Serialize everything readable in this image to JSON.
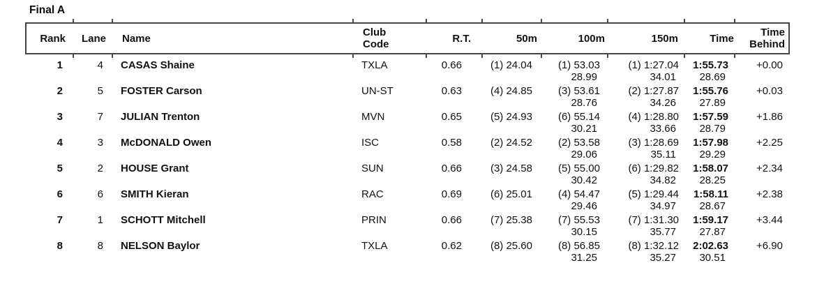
{
  "page": {
    "title": "Final A"
  },
  "table": {
    "headers": {
      "rank": "Rank",
      "lane": "Lane",
      "name": "Name",
      "club_code_line1": "Club",
      "club_code_line2": "Code",
      "rt": "R.T.",
      "m50": "50m",
      "m100": "100m",
      "m150": "150m",
      "time": "Time",
      "time_behind_line1": "Time",
      "time_behind_line2": "Behind"
    },
    "rows": [
      {
        "rank": "1",
        "lane": "4",
        "name": "CASAS Shaine",
        "club": "TXLA",
        "rt": "0.66",
        "m50": "(1) 24.04",
        "m100": "(1) 53.03",
        "m100_split": "28.99",
        "m150": "(1) 1:27.04",
        "m150_split": "34.01",
        "time": "1:55.73",
        "time_split": "28.69",
        "behind": "+0.00"
      },
      {
        "rank": "2",
        "lane": "5",
        "name": "FOSTER Carson",
        "club": "UN-ST",
        "rt": "0.63",
        "m50": "(4) 24.85",
        "m100": "(3) 53.61",
        "m100_split": "28.76",
        "m150": "(2) 1:27.87",
        "m150_split": "34.26",
        "time": "1:55.76",
        "time_split": "27.89",
        "behind": "+0.03"
      },
      {
        "rank": "3",
        "lane": "7",
        "name": "JULIAN Trenton",
        "club": "MVN",
        "rt": "0.65",
        "m50": "(5) 24.93",
        "m100": "(6) 55.14",
        "m100_split": "30.21",
        "m150": "(4) 1:28.80",
        "m150_split": "33.66",
        "time": "1:57.59",
        "time_split": "28.79",
        "behind": "+1.86"
      },
      {
        "rank": "4",
        "lane": "3",
        "name": "McDONALD Owen",
        "club": "ISC",
        "rt": "0.58",
        "m50": "(2) 24.52",
        "m100": "(2) 53.58",
        "m100_split": "29.06",
        "m150": "(3) 1:28.69",
        "m150_split": "35.11",
        "time": "1:57.98",
        "time_split": "29.29",
        "behind": "+2.25"
      },
      {
        "rank": "5",
        "lane": "2",
        "name": "HOUSE Grant",
        "club": "SUN",
        "rt": "0.66",
        "m50": "(3) 24.58",
        "m100": "(5) 55.00",
        "m100_split": "30.42",
        "m150": "(6) 1:29.82",
        "m150_split": "34.82",
        "time": "1:58.07",
        "time_split": "28.25",
        "behind": "+2.34"
      },
      {
        "rank": "6",
        "lane": "6",
        "name": "SMITH Kieran",
        "club": "RAC",
        "rt": "0.69",
        "m50": "(6) 25.01",
        "m100": "(4) 54.47",
        "m100_split": "29.46",
        "m150": "(5) 1:29.44",
        "m150_split": "34.97",
        "time": "1:58.11",
        "time_split": "28.67",
        "behind": "+2.38"
      },
      {
        "rank": "7",
        "lane": "1",
        "name": "SCHOTT Mitchell",
        "club": "PRIN",
        "rt": "0.66",
        "m50": "(7) 25.38",
        "m100": "(7) 55.53",
        "m100_split": "30.15",
        "m150": "(7) 1:31.30",
        "m150_split": "35.77",
        "time": "1:59.17",
        "time_split": "27.87",
        "behind": "+3.44"
      },
      {
        "rank": "8",
        "lane": "8",
        "name": "NELSON Baylor",
        "club": "TXLA",
        "rt": "0.62",
        "m50": "(8) 25.60",
        "m100": "(8) 56.85",
        "m100_split": "31.25",
        "m150": "(8) 1:32.12",
        "m150_split": "35.27",
        "time": "2:02.63",
        "time_split": "30.51",
        "behind": "+6.90"
      }
    ]
  }
}
